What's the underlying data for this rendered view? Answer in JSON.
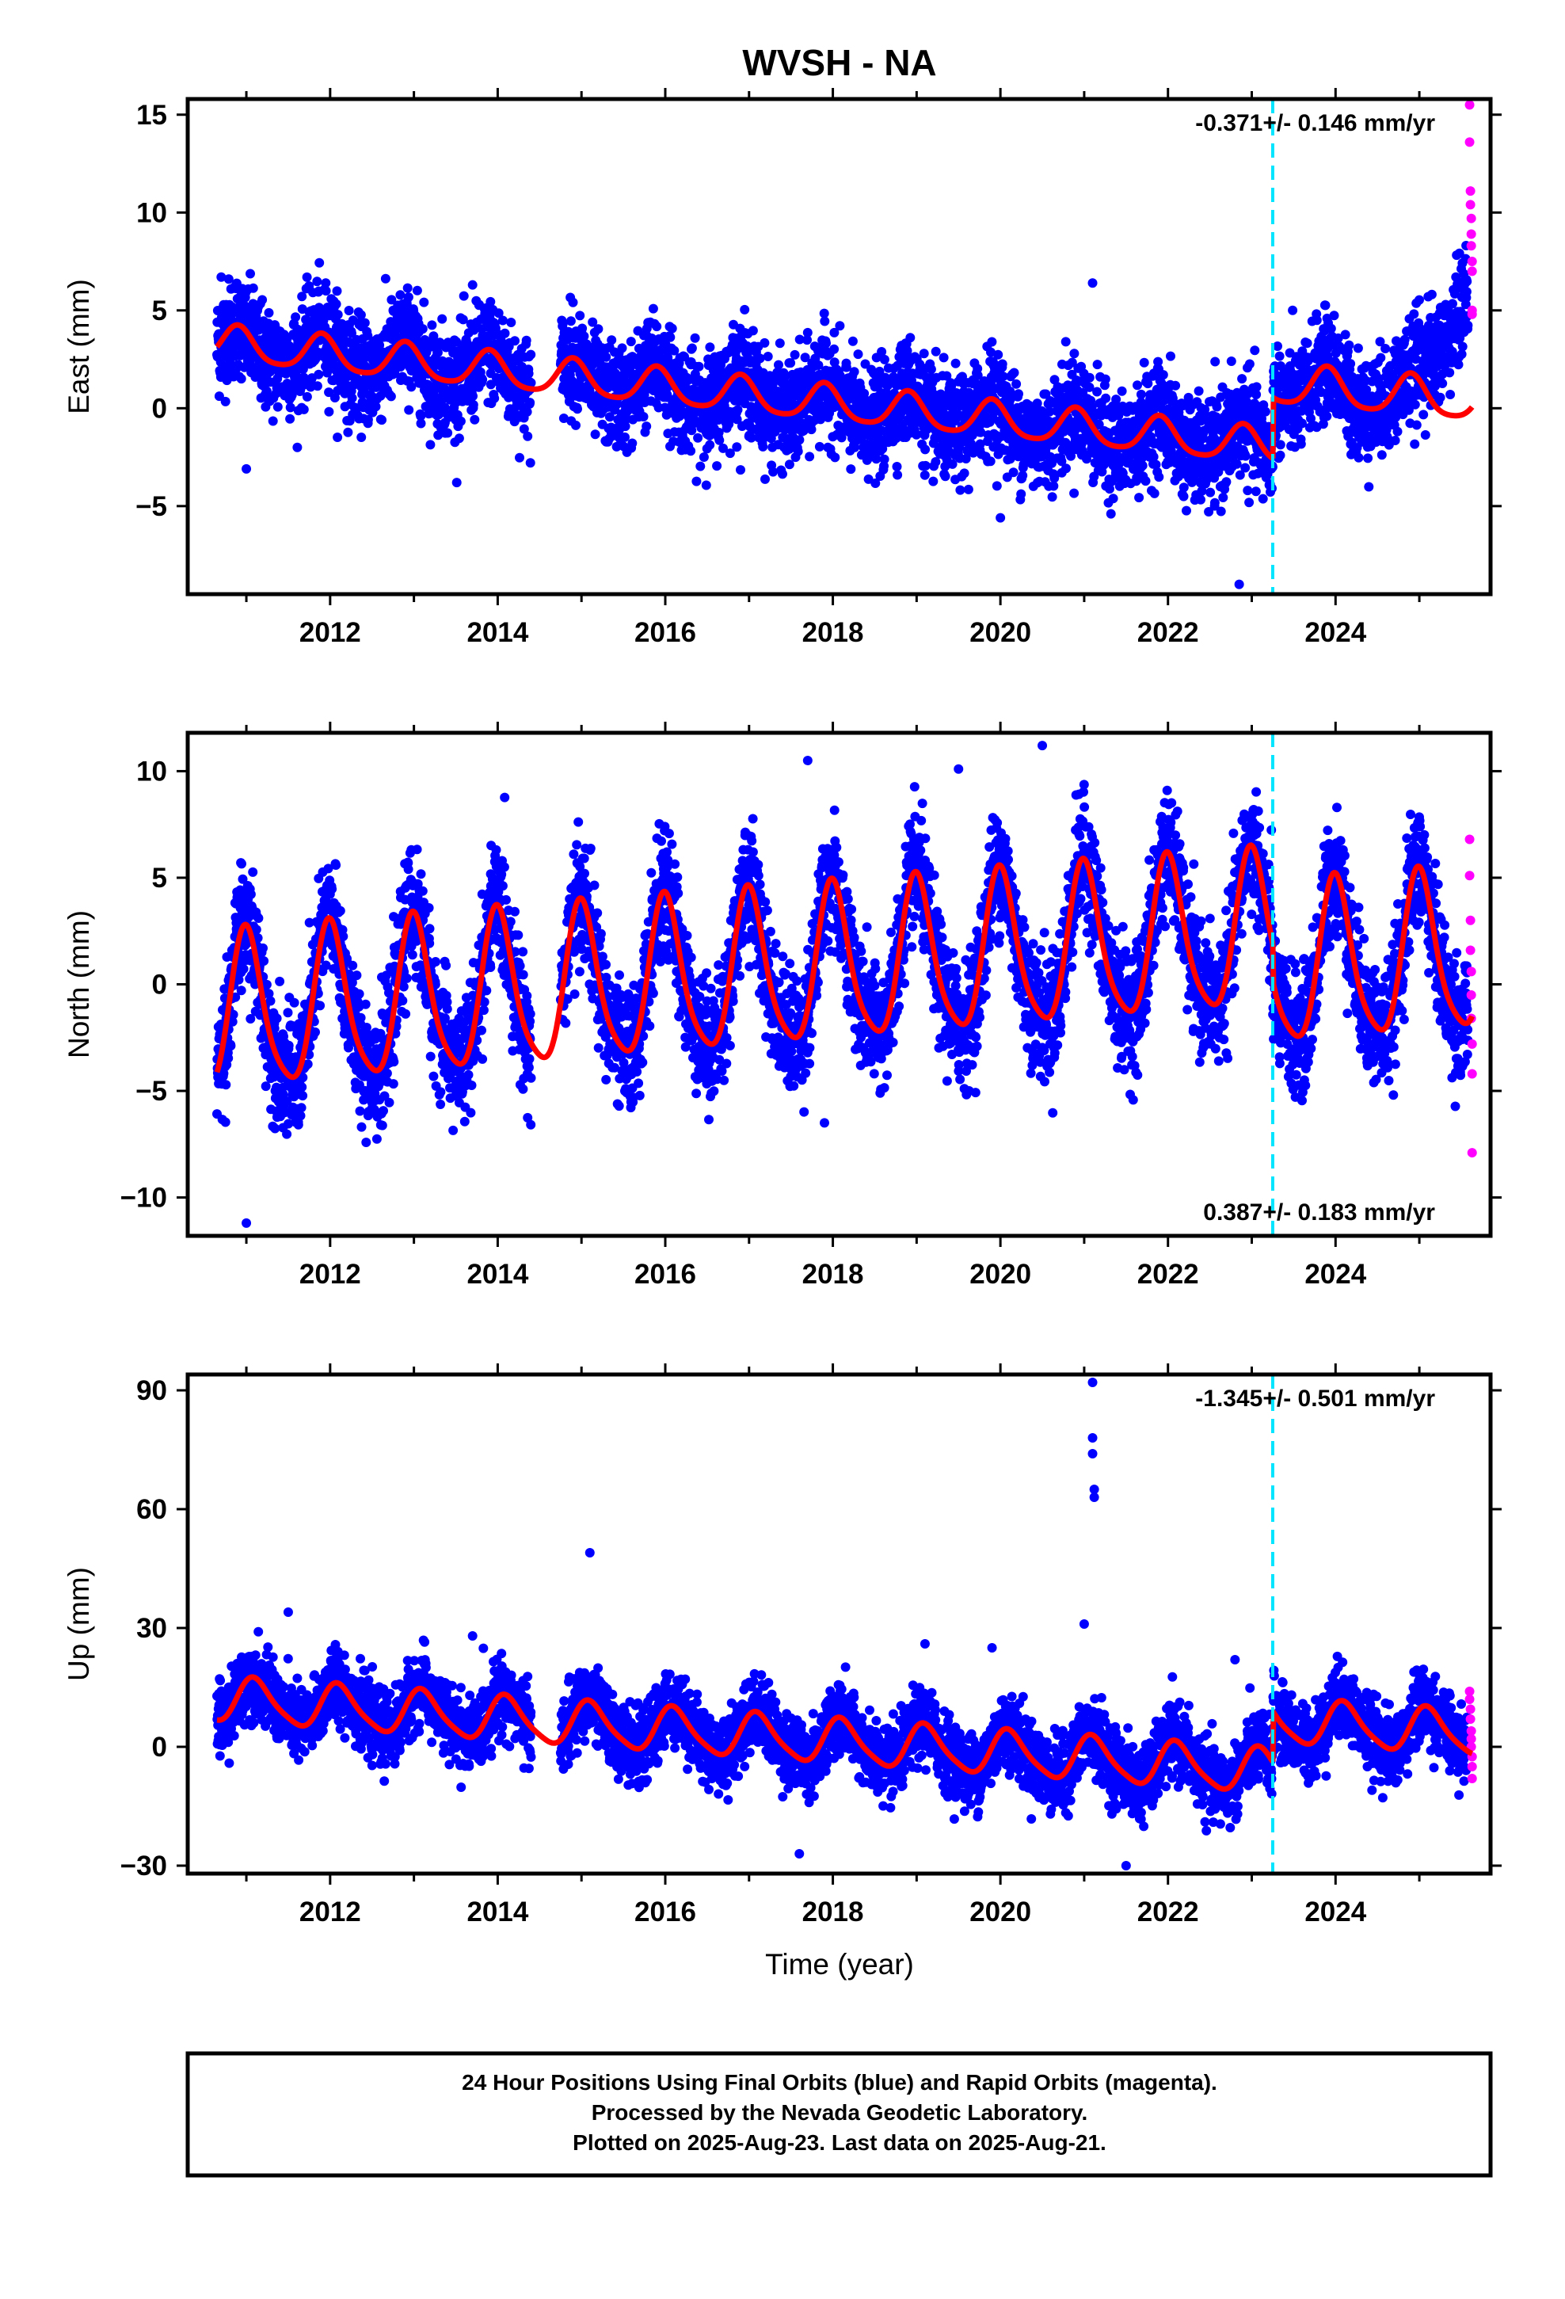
{
  "title": "WVSH - NA",
  "xlabel": "Time (year)",
  "colors": {
    "final": "#0000ff",
    "rapid": "#ff00ff",
    "model": "#ff0000",
    "event": "#00e5ff"
  },
  "footer": {
    "line1": "24 Hour Positions Using Final Orbits (blue) and Rapid Orbits (magenta).",
    "line2": "Processed by the Nevada Geodetic Laboratory.",
    "line3": "Plotted on 2025-Aug-23. Last data on 2025-Aug-21."
  },
  "chart_data": [
    {
      "type": "scatter",
      "name": "east",
      "ylabel": "East (mm)",
      "rate_text": "-0.371+/- 0.146 mm/yr",
      "rate_position": "top-right",
      "xlim": [
        2010.3,
        2025.85
      ],
      "ylim": [
        -9.5,
        15.8
      ],
      "yticks": [
        -5,
        0,
        5,
        10,
        15
      ],
      "xticks": [
        2012,
        2014,
        2016,
        2018,
        2020,
        2022,
        2024
      ],
      "event_year": 2023.25,
      "data_start": 2010.65,
      "data_end": 2025.63,
      "gap": [
        2014.4,
        2014.75
      ],
      "model": {
        "segments": [
          {
            "start": 2010.65,
            "end": 2023.25,
            "offset": 3.3,
            "rate": -0.42,
            "annual": 0.9,
            "phase": 2.2
          },
          {
            "start": 2023.25,
            "end": 2025.63,
            "offset": 1.2,
            "rate": -0.35,
            "annual": 1.0,
            "phase": 2.2
          }
        ]
      },
      "scatter": 1.3,
      "outliers": [
        {
          "x": 2010.7,
          "y": 6.7
        },
        {
          "x": 2013.7,
          "y": 6.3
        },
        {
          "x": 2021.1,
          "y": 6.4
        },
        {
          "x": 2022.85,
          "y": -9.0
        },
        {
          "x": 2020.0,
          "y": -5.6
        },
        {
          "x": 2011.0,
          "y": -3.1
        }
      ],
      "rapid_points": [
        {
          "x": 2025.6,
          "y": 15.5
        },
        {
          "x": 2025.6,
          "y": 13.6
        },
        {
          "x": 2025.61,
          "y": 11.1
        },
        {
          "x": 2025.61,
          "y": 10.4
        },
        {
          "x": 2025.62,
          "y": 9.7
        },
        {
          "x": 2025.62,
          "y": 8.9
        },
        {
          "x": 2025.62,
          "y": 8.3
        },
        {
          "x": 2025.63,
          "y": 7.5
        },
        {
          "x": 2025.63,
          "y": 7.0
        },
        {
          "x": 2025.63,
          "y": 5.0
        },
        {
          "x": 2025.63,
          "y": 4.8
        }
      ],
      "late_trend": {
        "start": 2024.9,
        "end": 2025.63,
        "rise": 6.5
      }
    },
    {
      "type": "scatter",
      "name": "north",
      "ylabel": "North (mm)",
      "rate_text": "0.387+/- 0.183 mm/yr",
      "rate_position": "bottom-right",
      "xlim": [
        2010.3,
        2025.85
      ],
      "ylim": [
        -11.8,
        11.8
      ],
      "yticks": [
        -10,
        -5,
        0,
        5,
        10
      ],
      "xticks": [
        2012,
        2014,
        2016,
        2018,
        2020,
        2022,
        2024
      ],
      "event_year": 2023.25,
      "data_start": 2010.65,
      "data_end": 2025.63,
      "gap": [
        2014.4,
        2014.75
      ],
      "model": {
        "segments": [
          {
            "start": 2010.65,
            "end": 2023.25,
            "offset": -1.5,
            "rate": 0.31,
            "annual": 3.6,
            "phase": 1.55
          },
          {
            "start": 2023.25,
            "end": 2025.63,
            "offset": 0.7,
            "rate": 0.3,
            "annual": 3.7,
            "phase": 1.55
          }
        ]
      },
      "scatter": 1.4,
      "outliers": [
        {
          "x": 2011.0,
          "y": -11.2
        },
        {
          "x": 2017.7,
          "y": 10.5
        },
        {
          "x": 2020.5,
          "y": 11.2
        },
        {
          "x": 2017.9,
          "y": -6.5
        },
        {
          "x": 2019.5,
          "y": 10.1
        }
      ],
      "rapid_points": [
        {
          "x": 2025.6,
          "y": 6.8
        },
        {
          "x": 2025.6,
          "y": 5.1
        },
        {
          "x": 2025.61,
          "y": 3.0
        },
        {
          "x": 2025.61,
          "y": 1.6
        },
        {
          "x": 2025.62,
          "y": 0.6
        },
        {
          "x": 2025.62,
          "y": -0.5
        },
        {
          "x": 2025.62,
          "y": -1.6
        },
        {
          "x": 2025.63,
          "y": -2.8
        },
        {
          "x": 2025.63,
          "y": -4.2
        },
        {
          "x": 2025.63,
          "y": -7.9
        }
      ]
    },
    {
      "type": "scatter",
      "name": "up",
      "ylabel": "Up (mm)",
      "rate_text": "-1.345+/- 0.501 mm/yr",
      "rate_position": "top-right",
      "xlim": [
        2010.3,
        2025.85
      ],
      "ylim": [
        -32,
        94
      ],
      "yticks": [
        -30,
        0,
        30,
        60,
        90
      ],
      "xticks": [
        2012,
        2014,
        2016,
        2018,
        2020,
        2022,
        2024
      ],
      "event_year": 2023.25,
      "data_start": 2010.65,
      "data_end": 2025.63,
      "gap": [
        2014.4,
        2014.75
      ],
      "model": {
        "segments": [
          {
            "start": 2010.65,
            "end": 2023.25,
            "offset": 12.0,
            "rate": -1.45,
            "annual": 5.5,
            "phase": 0.9
          },
          {
            "start": 2023.25,
            "end": 2025.63,
            "offset": 6.5,
            "rate": -1.3,
            "annual": 5.5,
            "phase": 0.9
          }
        ]
      },
      "scatter": 4.5,
      "outliers": [
        {
          "x": 2021.1,
          "y": 92.0
        },
        {
          "x": 2021.1,
          "y": 78.0
        },
        {
          "x": 2021.1,
          "y": 74.0
        },
        {
          "x": 2021.12,
          "y": 65.0
        },
        {
          "x": 2021.12,
          "y": 63.0
        },
        {
          "x": 2021.0,
          "y": 31.0
        },
        {
          "x": 2015.1,
          "y": 49.0
        },
        {
          "x": 2011.5,
          "y": 34.0
        },
        {
          "x": 2019.9,
          "y": 25.0
        },
        {
          "x": 2022.8,
          "y": 22.0
        },
        {
          "x": 2017.6,
          "y": -27.0
        },
        {
          "x": 2021.5,
          "y": -30.0
        },
        {
          "x": 2013.7,
          "y": 28.0
        },
        {
          "x": 2019.1,
          "y": 26.0
        }
      ],
      "rapid_points": [
        {
          "x": 2025.6,
          "y": 14.0
        },
        {
          "x": 2025.6,
          "y": 12.0
        },
        {
          "x": 2025.61,
          "y": 9.5
        },
        {
          "x": 2025.61,
          "y": 7.0
        },
        {
          "x": 2025.62,
          "y": 4.0
        },
        {
          "x": 2025.62,
          "y": 2.0
        },
        {
          "x": 2025.62,
          "y": 0.0
        },
        {
          "x": 2025.63,
          "y": -2.5
        },
        {
          "x": 2025.63,
          "y": -5.0
        },
        {
          "x": 2025.63,
          "y": -8.0
        }
      ]
    }
  ]
}
